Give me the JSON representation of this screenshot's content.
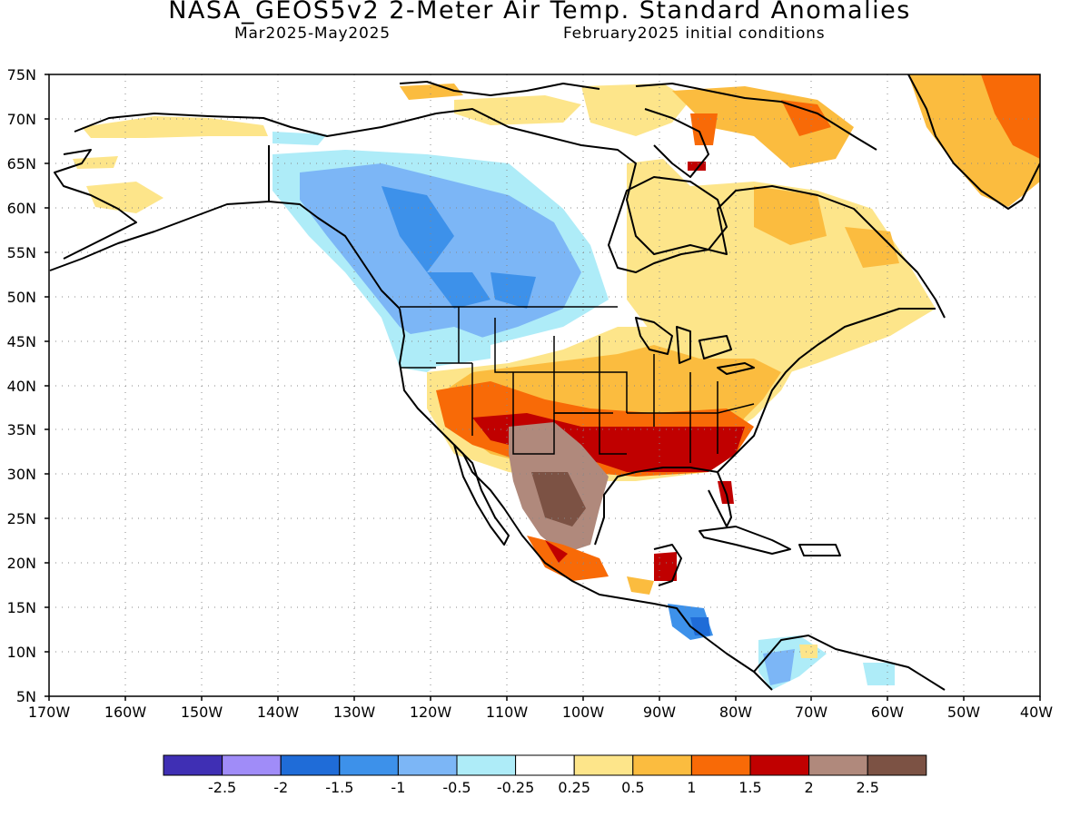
{
  "header": {
    "title": "NASA_GEOS5v2 2-Meter Air Temp. Standard Anomalies",
    "period": "Mar2025-May2025",
    "initial_conditions": "February2025 initial conditions"
  },
  "map": {
    "lon_range": [
      -170,
      -40
    ],
    "lat_range": [
      5,
      75
    ],
    "lat_ticks": [
      "75N",
      "70N",
      "65N",
      "60N",
      "55N",
      "50N",
      "45N",
      "40N",
      "35N",
      "30N",
      "25N",
      "20N",
      "15N",
      "10N",
      "5N"
    ],
    "lon_ticks": [
      "170W",
      "160W",
      "150W",
      "140W",
      "130W",
      "120W",
      "110W",
      "100W",
      "90W",
      "80W",
      "70W",
      "60W",
      "50W",
      "40W"
    ],
    "grid": "dotted"
  },
  "colorbar": {
    "colors": [
      "#3f2fb4",
      "#a08cf8",
      "#1f6cd8",
      "#3d91ea",
      "#7cb6f6",
      "#aeecf8",
      "#ffffff",
      "#fde58a",
      "#fbbc3f",
      "#f86a07",
      "#c00000",
      "#b0897c",
      "#7c5244"
    ],
    "labels": [
      "-2.5",
      "-2",
      "-1.5",
      "-1",
      "-0.5",
      "-0.25",
      "0.25",
      "0.5",
      "1",
      "1.5",
      "2",
      "2.5"
    ]
  },
  "anomaly_regions": [
    {
      "region": "Alaska / Yukon",
      "class": "0.5"
    },
    {
      "region": "Western Canada",
      "class": "-1"
    },
    {
      "region": "US Northwest",
      "class": "-0.5"
    },
    {
      "region": "US Southwest / Texas",
      "class": "2"
    },
    {
      "region": "Northern Mexico",
      "class": "2.5"
    },
    {
      "region": "US Southeast",
      "class": "2"
    },
    {
      "region": "US Central / East",
      "class": "1"
    },
    {
      "region": "Eastern Canada / Quebec",
      "class": "0.5"
    },
    {
      "region": "Greenland",
      "class": "1.5"
    },
    {
      "region": "Central America",
      "class": "-1"
    },
    {
      "region": "Northern South America",
      "class": "-0.5"
    }
  ]
}
